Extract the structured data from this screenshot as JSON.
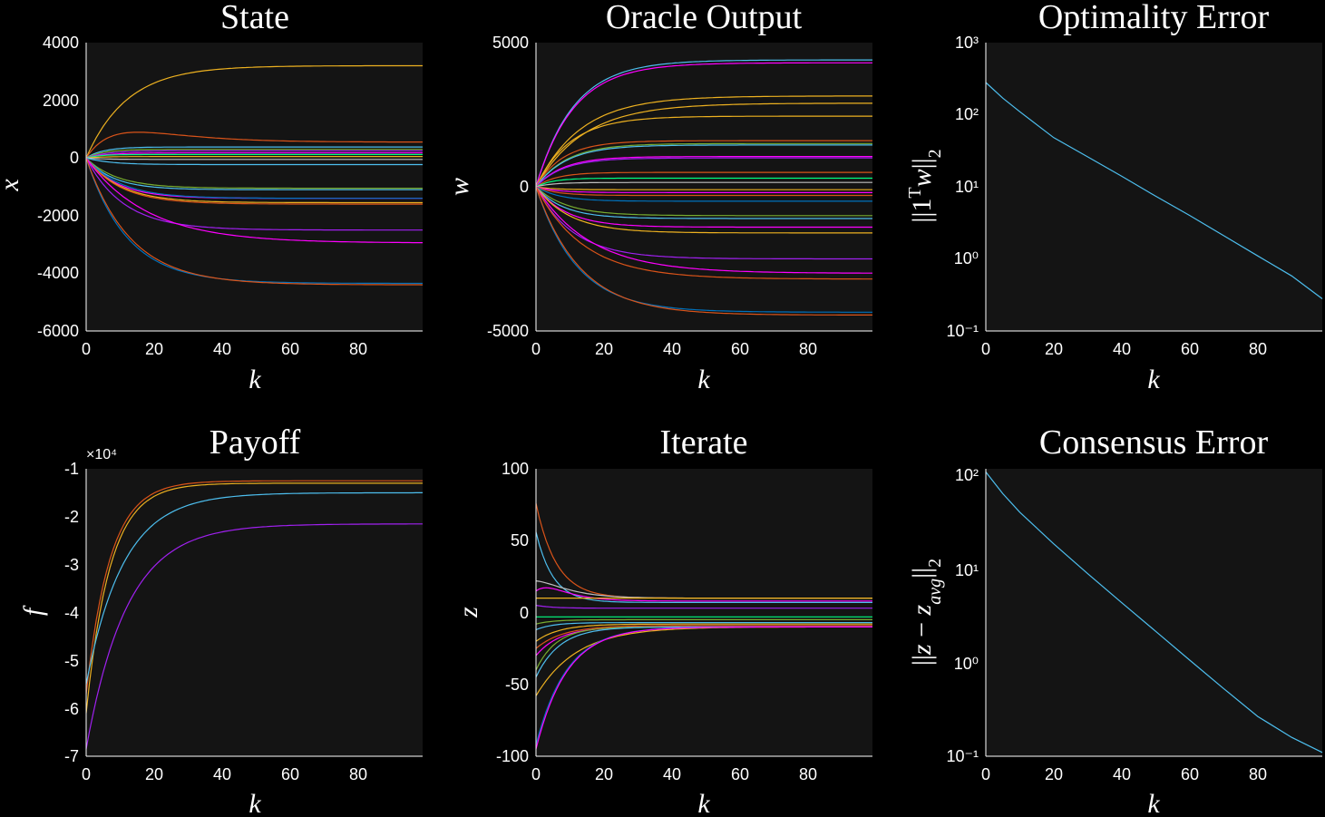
{
  "chart_data": [
    {
      "type": "line",
      "title": "State",
      "xlabel": "k",
      "ylabel": "x",
      "xlim": [
        0,
        99
      ],
      "ylim": [
        -6000,
        4000
      ],
      "xticks": [
        0,
        20,
        40,
        60,
        80
      ],
      "yticks": [
        -6000,
        -4000,
        -2000,
        0,
        2000,
        4000
      ],
      "grid": false,
      "series": [
        {
          "color": "#EDB120",
          "final": 3200,
          "tau": 12
        },
        {
          "color": "#D95319",
          "final": 550,
          "tau": 6,
          "peak": 950
        },
        {
          "color": "#4DBEEE",
          "final": 380,
          "tau": 5
        },
        {
          "color": "#77AC30",
          "final": 300,
          "tau": 5
        },
        {
          "color": "#A020F0",
          "final": 250,
          "tau": 6
        },
        {
          "color": "#FF00FF",
          "final": 180,
          "tau": 6
        },
        {
          "color": "#00FF80",
          "final": 120,
          "tau": 4
        },
        {
          "color": "#EDB120",
          "final": 50,
          "tau": 5
        },
        {
          "color": "#BFBFBF",
          "final": -50,
          "tau": 5
        },
        {
          "color": "#4DBEEE",
          "final": -230,
          "tau": 7
        },
        {
          "color": "#77AC30",
          "final": -1050,
          "tau": 9
        },
        {
          "color": "#4DBEEE",
          "final": -1100,
          "tau": 8
        },
        {
          "color": "#FF00FF",
          "final": -1400,
          "tau": 9
        },
        {
          "color": "#0072BD",
          "final": -1400,
          "tau": 10
        },
        {
          "color": "#EDB120",
          "final": -1550,
          "tau": 10
        },
        {
          "color": "#D95319",
          "final": -1600,
          "tau": 10
        },
        {
          "color": "#A020F0",
          "final": -2500,
          "tau": 11
        },
        {
          "color": "#FF00FF",
          "final": -2950,
          "tau": 18
        },
        {
          "color": "#0072BD",
          "final": -4350,
          "tau": 12
        },
        {
          "color": "#D95319",
          "final": -4400,
          "tau": 13
        }
      ]
    },
    {
      "type": "line",
      "title": "Oracle Output",
      "xlabel": "k",
      "ylabel": "w",
      "xlim": [
        0,
        99
      ],
      "ylim": [
        -5000,
        5000
      ],
      "xticks": [
        0,
        20,
        40,
        60,
        80
      ],
      "yticks": [
        -5000,
        0,
        5000
      ],
      "grid": false,
      "series": [
        {
          "color": "#4DBEEE",
          "final": 4400,
          "tau": 11
        },
        {
          "color": "#FF00FF",
          "final": 4300,
          "tau": 11
        },
        {
          "color": "#EDB120",
          "final": 3150,
          "tau": 13
        },
        {
          "color": "#EDB120",
          "final": 2900,
          "tau": 14
        },
        {
          "color": "#EDB120",
          "final": 2450,
          "tau": 10
        },
        {
          "color": "#D95319",
          "final": 1600,
          "tau": 8
        },
        {
          "color": "#77AC30",
          "final": 1500,
          "tau": 9
        },
        {
          "color": "#4DBEEE",
          "final": 1450,
          "tau": 9
        },
        {
          "color": "#FF00FF",
          "final": 1050,
          "tau": 8
        },
        {
          "color": "#A020F0",
          "final": 1000,
          "tau": 8
        },
        {
          "color": "#D95319",
          "final": 500,
          "tau": 6
        },
        {
          "color": "#00FF80",
          "final": 300,
          "tau": 5
        },
        {
          "color": "#BFBFBF",
          "final": 150,
          "tau": 5
        },
        {
          "color": "#EDB120",
          "final": -100,
          "tau": 5
        },
        {
          "color": "#FF00FF",
          "final": -200,
          "tau": 6
        },
        {
          "color": "#D95319",
          "final": -300,
          "tau": 6
        },
        {
          "color": "#0072BD",
          "final": -500,
          "tau": 7
        },
        {
          "color": "#77AC30",
          "final": -1000,
          "tau": 9
        },
        {
          "color": "#4DBEEE",
          "final": -1100,
          "tau": 8
        },
        {
          "color": "#FF00FF",
          "final": -1400,
          "tau": 9
        },
        {
          "color": "#EDB120",
          "final": -1600,
          "tau": 10
        },
        {
          "color": "#A020F0",
          "final": -2500,
          "tau": 11
        },
        {
          "color": "#FF00FF",
          "final": -3000,
          "tau": 16
        },
        {
          "color": "#D95319",
          "final": -3200,
          "tau": 14
        },
        {
          "color": "#0072BD",
          "final": -4350,
          "tau": 12
        },
        {
          "color": "#D95319",
          "final": -4450,
          "tau": 13
        }
      ]
    },
    {
      "type": "line",
      "title": "Optimality Error",
      "xlabel": "k",
      "ylabel": "||1ᵀw||₂",
      "yscale": "log",
      "xlim": [
        0,
        99
      ],
      "ylim": [
        0.1,
        1000
      ],
      "xticks": [
        0,
        20,
        40,
        60,
        80
      ],
      "ytick_labels": [
        "10³",
        "10²",
        "10¹",
        "10⁰",
        "10⁻¹"
      ],
      "grid": false,
      "series": [
        {
          "color": "#4DBEEE",
          "x": [
            0,
            5,
            10,
            20,
            30,
            40,
            50,
            60,
            70,
            80,
            90,
            99
          ],
          "y": [
            280,
            170,
            110,
            48,
            26,
            14,
            7.4,
            4.0,
            2.1,
            1.1,
            0.58,
            0.28
          ]
        }
      ]
    },
    {
      "type": "line",
      "title": "Payoff",
      "xlabel": "k",
      "ylabel": "f",
      "multiplier": "×10⁴",
      "xlim": [
        0,
        99
      ],
      "ylim": [
        -7,
        -1
      ],
      "xticks": [
        0,
        20,
        40,
        60,
        80
      ],
      "yticks": [
        -7,
        -6,
        -5,
        -4,
        -3,
        -2,
        -1
      ],
      "grid": false,
      "series": [
        {
          "color": "#D95319",
          "start": -5.7,
          "final": -1.25,
          "tau": 7
        },
        {
          "color": "#EDB120",
          "start": -6.1,
          "final": -1.3,
          "tau": 7
        },
        {
          "color": "#4DBEEE",
          "start": -5.5,
          "final": -1.5,
          "tau": 11
        },
        {
          "color": "#A020F0",
          "start": -6.85,
          "final": -2.15,
          "tau": 12
        }
      ]
    },
    {
      "type": "line",
      "title": "Iterate",
      "xlabel": "k",
      "ylabel": "z",
      "xlim": [
        0,
        99
      ],
      "ylim": [
        -100,
        100
      ],
      "xticks": [
        0,
        20,
        40,
        60,
        80
      ],
      "yticks": [
        -100,
        -50,
        0,
        50,
        100
      ],
      "grid": false,
      "series": [
        {
          "color": "#D95319",
          "start": 76,
          "final": 10,
          "tau": 6
        },
        {
          "color": "#4DBEEE",
          "start": 56,
          "final": 7,
          "tau": 5
        },
        {
          "color": "#BFBFBF",
          "start": 22,
          "final": 10,
          "tau": 6,
          "overshoot": 4
        },
        {
          "color": "#FF00FF",
          "start": 15,
          "final": 8,
          "tau": 5,
          "overshoot": 6
        },
        {
          "color": "#EDB120",
          "start": 10,
          "final": 10,
          "tau": 4
        },
        {
          "color": "#A020F0",
          "start": 5,
          "final": 3,
          "tau": 5
        },
        {
          "color": "#00FF80",
          "start": -3,
          "final": -3,
          "tau": 4
        },
        {
          "color": "#77AC30",
          "start": -8,
          "final": -5,
          "tau": 5
        },
        {
          "color": "#4DBEEE",
          "start": -12,
          "final": -7,
          "tau": 5
        },
        {
          "color": "#EDB120",
          "start": -20,
          "final": -8,
          "tau": 7
        },
        {
          "color": "#D95319",
          "start": -25,
          "final": -9,
          "tau": 8
        },
        {
          "color": "#FF00FF",
          "start": -30,
          "final": -10,
          "tau": 7
        },
        {
          "color": "#77AC30",
          "start": -40,
          "final": -10,
          "tau": 6
        },
        {
          "color": "#4DBEEE",
          "start": -45,
          "final": -10,
          "tau": 7
        },
        {
          "color": "#EDB120",
          "start": -58,
          "final": -10,
          "tau": 12
        },
        {
          "color": "#0072BD",
          "start": -92,
          "final": -10,
          "tau": 9
        },
        {
          "color": "#FF00FF",
          "start": -95,
          "final": -10,
          "tau": 9
        }
      ]
    },
    {
      "type": "line",
      "title": "Consensus Error",
      "xlabel": "k",
      "ylabel": "||z − z_avg||₂",
      "yscale": "log",
      "xlim": [
        0,
        99
      ],
      "ylim": [
        0.1,
        130
      ],
      "xticks": [
        0,
        20,
        40,
        60,
        80
      ],
      "ytick_labels": [
        "10²",
        "10¹",
        "10⁰",
        "10⁻¹"
      ],
      "grid": false,
      "series": [
        {
          "color": "#4DBEEE",
          "x": [
            0,
            5,
            10,
            20,
            30,
            40,
            50,
            60,
            70,
            80,
            90,
            99
          ],
          "y": [
            120,
            70,
            44,
            20,
            9.5,
            4.6,
            2.25,
            1.1,
            0.54,
            0.27,
            0.16,
            0.11
          ]
        }
      ]
    }
  ],
  "ylabel_sup": "T",
  "ylabel_sub": "2",
  "ylabel_sub_avg": "avg"
}
